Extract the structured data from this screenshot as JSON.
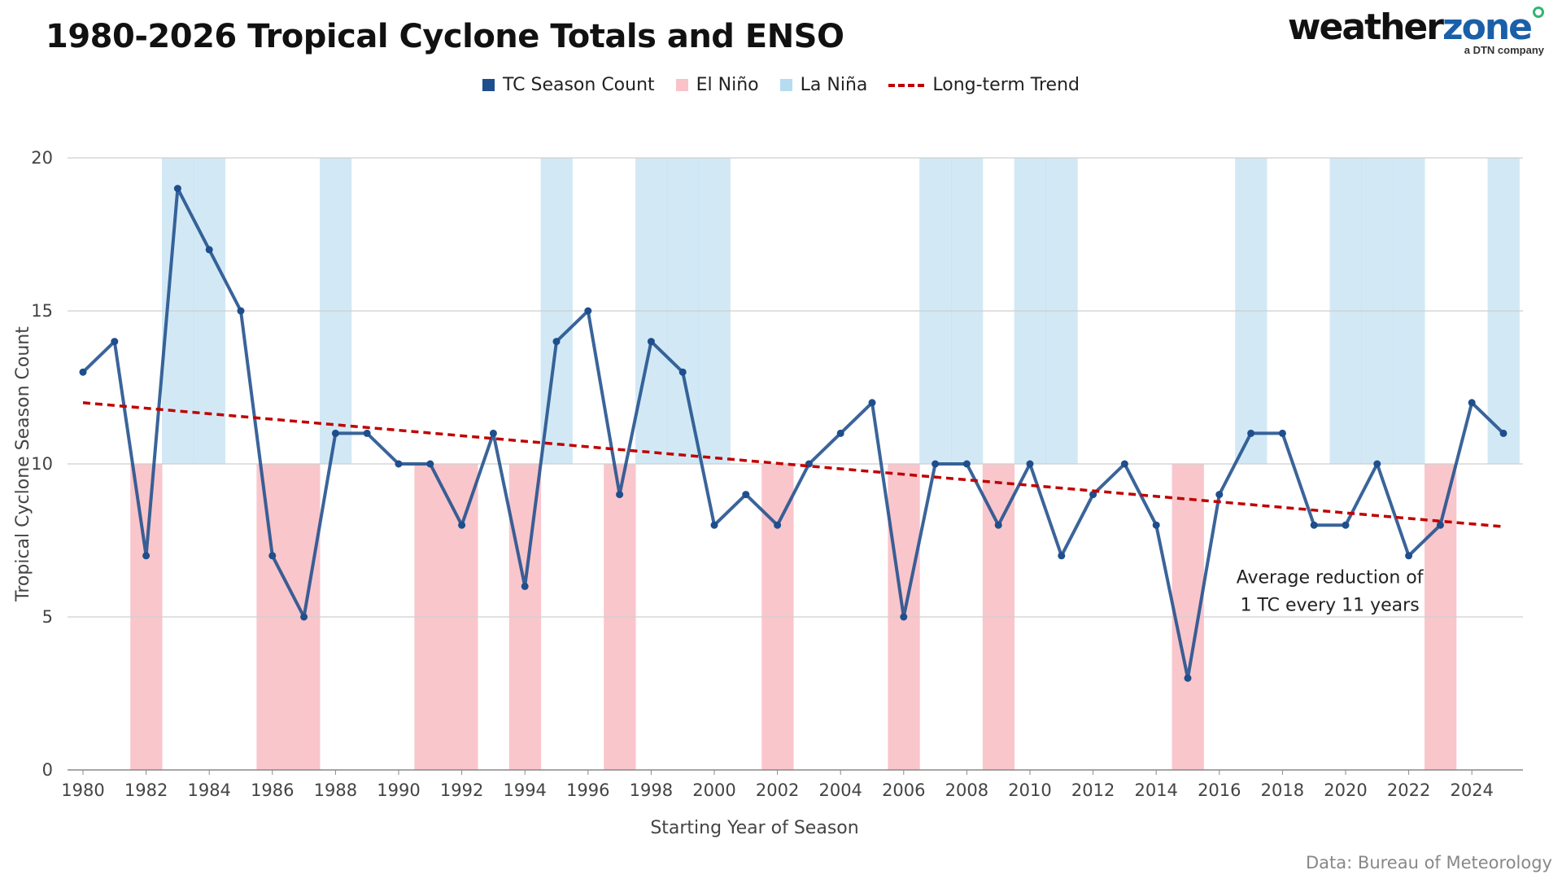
{
  "header": {
    "title": "1980-2026 Tropical Cyclone Totals and ENSO",
    "logo_main": "weather",
    "logo_accent": "zone",
    "logo_sub": "a DTN company"
  },
  "source": "Data: Bureau of Meteorology",
  "legend": [
    {
      "label": "TC Season Count",
      "color": "#1f4e8c",
      "kind": "square"
    },
    {
      "label": "El Niño",
      "color": "#f9c3c8",
      "kind": "square"
    },
    {
      "label": "La Niña",
      "color": "#b6dcef",
      "kind": "square"
    },
    {
      "label": "Long-term Trend",
      "color": "#c00000",
      "kind": "dash"
    }
  ],
  "chart_data": {
    "type": "line",
    "xlabel": "Starting Year of Season",
    "ylabel": "Tropical Cyclone Season Count",
    "ylim": [
      0,
      20
    ],
    "xlim": [
      1980,
      2025
    ],
    "y_ticks": [
      0,
      5,
      10,
      15,
      20
    ],
    "x_ticks": [
      1980,
      1982,
      1984,
      1986,
      1988,
      1990,
      1992,
      1994,
      1996,
      1998,
      2000,
      2002,
      2004,
      2006,
      2008,
      2010,
      2012,
      2014,
      2016,
      2018,
      2020,
      2022,
      2024
    ],
    "grid": true,
    "legend_position": "top-center",
    "series": [
      {
        "name": "TC Season Count",
        "color": "#1f4e8c",
        "x": [
          1980,
          1981,
          1982,
          1983,
          1984,
          1985,
          1986,
          1987,
          1988,
          1989,
          1990,
          1991,
          1992,
          1993,
          1994,
          1995,
          1996,
          1997,
          1998,
          1999,
          2000,
          2001,
          2002,
          2003,
          2004,
          2005,
          2006,
          2007,
          2008,
          2009,
          2010,
          2011,
          2012,
          2013,
          2014,
          2015,
          2016,
          2017,
          2018,
          2019,
          2020,
          2021,
          2022,
          2023,
          2024,
          2025
        ],
        "y": [
          13,
          14,
          7,
          19,
          17,
          15,
          7,
          5,
          11,
          11,
          10,
          10,
          8,
          11,
          6,
          14,
          15,
          9,
          14,
          13,
          8,
          9,
          8,
          10,
          11,
          12,
          5,
          10,
          10,
          8,
          10,
          7,
          9,
          10,
          8,
          3,
          9,
          11,
          11,
          8,
          8,
          10,
          7,
          8,
          12,
          11
        ]
      }
    ],
    "trend": {
      "name": "Long-term Trend",
      "x": [
        1980,
        2025
      ],
      "y": [
        12.0,
        7.95
      ],
      "color": "#c00000"
    },
    "el_nino_years": [
      1982,
      1986,
      1987,
      1991,
      1992,
      1994,
      1997,
      2002,
      2006,
      2009,
      2015,
      2023
    ],
    "la_nina_years": [
      1983,
      1984,
      1988,
      1995,
      1998,
      1999,
      2000,
      2007,
      2008,
      2010,
      2011,
      2017,
      2020,
      2021,
      2022,
      2025
    ],
    "annotation": [
      "Average reduction of",
      "1 TC every 11 years"
    ]
  }
}
